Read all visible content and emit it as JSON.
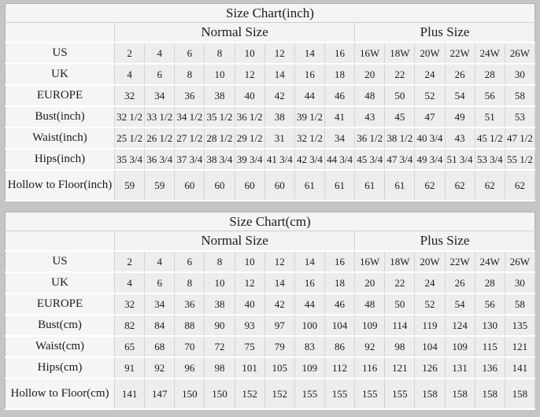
{
  "colors": {
    "page_background": "#c7c5c3",
    "table_background": "#efeeec",
    "header_background": "#f5f4f2",
    "vertical_border": "#d5d3d1",
    "horizontal_border": "#ffffff",
    "outer_border": "#b2b0ae",
    "text": "#1b1b1b"
  },
  "chart_data": [
    {
      "type": "table",
      "title": "Size Chart(inch)",
      "group_headers": [
        "Normal Size",
        "Plus Size"
      ],
      "normal_col_count": 8,
      "plus_col_count": 6,
      "rows": [
        {
          "label": "US",
          "values": [
            "2",
            "4",
            "6",
            "8",
            "10",
            "12",
            "14",
            "16",
            "16W",
            "18W",
            "20W",
            "22W",
            "24W",
            "26W"
          ]
        },
        {
          "label": "UK",
          "values": [
            "4",
            "6",
            "8",
            "10",
            "12",
            "14",
            "16",
            "18",
            "20",
            "22",
            "24",
            "26",
            "28",
            "30"
          ]
        },
        {
          "label": "EUROPE",
          "values": [
            "32",
            "34",
            "36",
            "38",
            "40",
            "42",
            "44",
            "46",
            "48",
            "50",
            "52",
            "54",
            "56",
            "58"
          ]
        },
        {
          "label": "Bust(inch)",
          "values": [
            "32 1/2",
            "33 1/2",
            "34 1/2",
            "35 1/2",
            "36 1/2",
            "38",
            "39 1/2",
            "41",
            "43",
            "45",
            "47",
            "49",
            "51",
            "53"
          ]
        },
        {
          "label": "Waist(inch)",
          "values": [
            "25 1/2",
            "26 1/2",
            "27 1/2",
            "28 1/2",
            "29 1/2",
            "31",
            "32 1/2",
            "34",
            "36 1/2",
            "38 1/2",
            "40 3/4",
            "43",
            "45 1/2",
            "47 1/2"
          ]
        },
        {
          "label": "Hips(inch)",
          "values": [
            "35 3/4",
            "36 3/4",
            "37 3/4",
            "38 3/4",
            "39 3/4",
            "41 3/4",
            "42 3/4",
            "44 3/4",
            "45 3/4",
            "47 3/4",
            "49 3/4",
            "51 3/4",
            "53 3/4",
            "55 1/2"
          ]
        },
        {
          "label": "Hollow to Floor(inch)",
          "values": [
            "59",
            "59",
            "60",
            "60",
            "60",
            "60",
            "61",
            "61",
            "61",
            "61",
            "62",
            "62",
            "62",
            "62"
          ]
        }
      ]
    },
    {
      "type": "table",
      "title": "Size Chart(cm)",
      "group_headers": [
        "Normal Size",
        "Plus Size"
      ],
      "normal_col_count": 8,
      "plus_col_count": 6,
      "rows": [
        {
          "label": "US",
          "values": [
            "2",
            "4",
            "6",
            "8",
            "10",
            "12",
            "14",
            "16",
            "16W",
            "18W",
            "20W",
            "22W",
            "24W",
            "26W"
          ]
        },
        {
          "label": "UK",
          "values": [
            "4",
            "6",
            "8",
            "10",
            "12",
            "14",
            "16",
            "18",
            "20",
            "22",
            "24",
            "26",
            "28",
            "30"
          ]
        },
        {
          "label": "EUROPE",
          "values": [
            "32",
            "34",
            "36",
            "38",
            "40",
            "42",
            "44",
            "46",
            "48",
            "50",
            "52",
            "54",
            "56",
            "58"
          ]
        },
        {
          "label": "Bust(cm)",
          "values": [
            "82",
            "84",
            "88",
            "90",
            "93",
            "97",
            "100",
            "104",
            "109",
            "114",
            "119",
            "124",
            "130",
            "135"
          ]
        },
        {
          "label": "Waist(cm)",
          "values": [
            "65",
            "68",
            "70",
            "72",
            "75",
            "79",
            "83",
            "86",
            "92",
            "98",
            "104",
            "109",
            "115",
            "121"
          ]
        },
        {
          "label": "Hips(cm)",
          "values": [
            "91",
            "92",
            "96",
            "98",
            "101",
            "105",
            "109",
            "112",
            "116",
            "121",
            "126",
            "131",
            "136",
            "141"
          ]
        },
        {
          "label": "Hollow to Floor(cm)",
          "values": [
            "141",
            "147",
            "150",
            "150",
            "152",
            "152",
            "155",
            "155",
            "155",
            "155",
            "158",
            "158",
            "158",
            "158"
          ]
        }
      ]
    }
  ]
}
